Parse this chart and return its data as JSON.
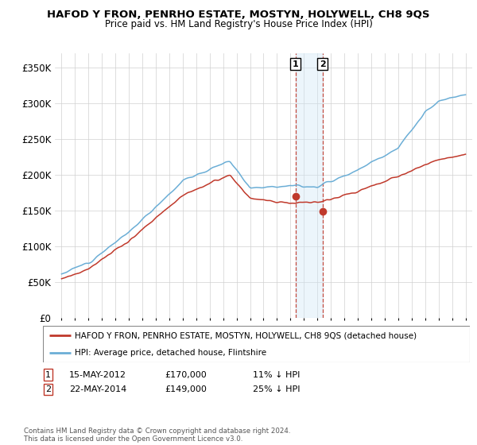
{
  "title": "HAFOD Y FRON, PENRHO ESTATE, MOSTYN, HOLYWELL, CH8 9QS",
  "subtitle": "Price paid vs. HM Land Registry's House Price Index (HPI)",
  "ylim": [
    0,
    370000
  ],
  "yticks": [
    0,
    50000,
    100000,
    150000,
    200000,
    250000,
    300000,
    350000
  ],
  "ytick_labels": [
    "£0",
    "£50K",
    "£100K",
    "£150K",
    "£200K",
    "£250K",
    "£300K",
    "£350K"
  ],
  "sale1_date": 2012.37,
  "sale1_price": 170000,
  "sale2_date": 2014.38,
  "sale2_price": 149000,
  "hpi_color": "#6baed6",
  "price_color": "#c0392b",
  "shade_color": "#d0e8f5",
  "legend_entry1": "HAFOD Y FRON, PENRHO ESTATE, MOSTYN, HOLYWELL, CH8 9QS (detached house)",
  "legend_entry2": "HPI: Average price, detached house, Flintshire",
  "footer": "Contains HM Land Registry data © Crown copyright and database right 2024.\nThis data is licensed under the Open Government Licence v3.0.",
  "table_row1": [
    "1",
    "15-MAY-2012",
    "£170,000",
    "11% ↓ HPI"
  ],
  "table_row2": [
    "2",
    "22-MAY-2014",
    "£149,000",
    "25% ↓ HPI"
  ]
}
